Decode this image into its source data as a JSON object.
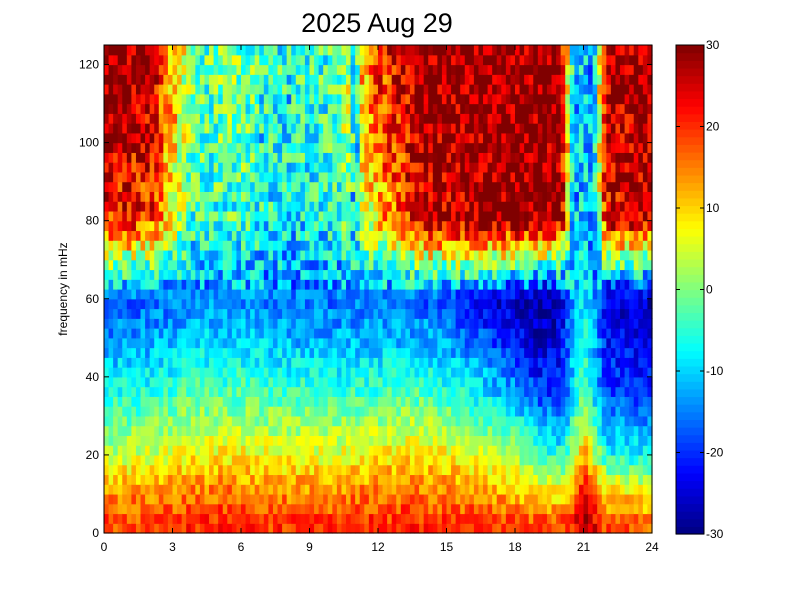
{
  "chart_data": {
    "type": "heatmap",
    "title": "2025 Aug 29",
    "xlabel": "",
    "ylabel": "frequency in mHz",
    "xlim": [
      0,
      24
    ],
    "ylim": [
      0,
      125
    ],
    "x_ticks": [
      "0",
      "3",
      "6",
      "9",
      "12",
      "15",
      "18",
      "21",
      "24"
    ],
    "y_ticks": [
      "0",
      "20",
      "40",
      "60",
      "80",
      "100",
      "120"
    ],
    "colorbar": {
      "colormap": "jet",
      "clim": [
        -30,
        30
      ],
      "ticks": [
        "-30",
        "-20",
        "-10",
        "0",
        "10",
        "20",
        "30"
      ]
    },
    "grid": false,
    "x_step_hours": 0.2,
    "y_step_mhz": 2.5,
    "series": [
      {
        "name": "",
        "hour": [
          0,
          2,
          4,
          6,
          8,
          10,
          12,
          14,
          16,
          18,
          19,
          20,
          20.6,
          21,
          21.4,
          22,
          24
        ],
        "mean_level_by_frequency": [
          {
            "frequency": 2.5,
            "values": [
              18,
              18,
              20,
              20,
              19,
              19,
              20,
              20,
              19,
              18,
              17,
              16,
              22,
              28,
              25,
              16,
              15
            ]
          },
          {
            "frequency": 10,
            "values": [
              14,
              15,
              16,
              16,
              15,
              15,
              16,
              16,
              15,
              12,
              10,
              8,
              16,
              24,
              18,
              10,
              9
            ]
          },
          {
            "frequency": 20,
            "values": [
              4,
              5,
              8,
              8,
              7,
              6,
              8,
              9,
              6,
              2,
              -2,
              -6,
              2,
              14,
              6,
              -6,
              -8
            ]
          },
          {
            "frequency": 35,
            "values": [
              -6,
              -5,
              -2,
              -2,
              -3,
              -4,
              -3,
              -2,
              -6,
              -12,
              -18,
              -20,
              -8,
              -2,
              -8,
              -18,
              -20
            ]
          },
          {
            "frequency": 50,
            "values": [
              -14,
              -13,
              -10,
              -10,
              -12,
              -12,
              -12,
              -12,
              -16,
              -22,
              -26,
              -24,
              -10,
              -6,
              -10,
              -22,
              -24
            ]
          },
          {
            "frequency": 60,
            "values": [
              -18,
              -17,
              -14,
              -14,
              -16,
              -16,
              -16,
              -17,
              -22,
              -27,
              -29,
              -26,
              -11,
              -9,
              -12,
              -25,
              -27
            ]
          },
          {
            "frequency": 80,
            "values": [
              22,
              20,
              -5,
              -4,
              -8,
              -6,
              10,
              25,
              28,
              30,
              30,
              28,
              -12,
              -10,
              -14,
              24,
              26
            ]
          },
          {
            "frequency": 120,
            "values": [
              30,
              28,
              -2,
              0,
              -6,
              -4,
              20,
              30,
              30,
              30,
              30,
              30,
              -12,
              -10,
              -14,
              28,
              30
            ]
          }
        ]
      }
    ],
    "vertical_streaks_hours": [
      7.0,
      8.2,
      8.4,
      11.0,
      20.6,
      21.2
    ]
  }
}
